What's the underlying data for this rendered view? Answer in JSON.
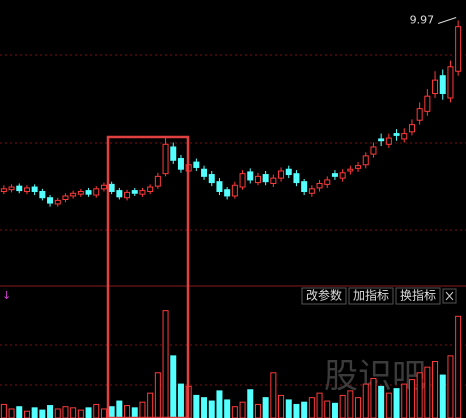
{
  "chart_data": {
    "type": "candlestick",
    "open": [
      8.05,
      8.07,
      8.11,
      8.05,
      8.1,
      8.05,
      7.98,
      7.91,
      7.96,
      8.0,
      8.02,
      8.06,
      8.01,
      8.08,
      8.13,
      8.06,
      7.98,
      8.06,
      8.02,
      8.05,
      8.11,
      8.25,
      8.55,
      8.42,
      8.28,
      8.38,
      8.3,
      8.24,
      8.16,
      8.07,
      8.0,
      8.1,
      8.27,
      8.15,
      8.24,
      8.14,
      8.2,
      8.3,
      8.25,
      8.16,
      8.03,
      8.09,
      8.13,
      8.25,
      8.2,
      8.28,
      8.31,
      8.35,
      8.47,
      8.64,
      8.58,
      8.7,
      8.64,
      8.72,
      8.85,
      8.95,
      9.15,
      9.35,
      9.1,
      9.4
    ],
    "high": [
      8.12,
      8.13,
      8.14,
      8.12,
      8.13,
      8.08,
      8.01,
      7.98,
      8.03,
      8.06,
      8.08,
      8.09,
      8.11,
      8.15,
      8.16,
      8.09,
      8.07,
      8.09,
      8.09,
      8.13,
      8.26,
      8.66,
      8.6,
      8.46,
      8.4,
      8.42,
      8.34,
      8.28,
      8.2,
      8.1,
      8.16,
      8.29,
      8.31,
      8.26,
      8.28,
      8.24,
      8.32,
      8.34,
      8.29,
      8.19,
      8.12,
      8.18,
      8.22,
      8.29,
      8.3,
      8.34,
      8.38,
      8.49,
      8.6,
      8.7,
      8.7,
      8.75,
      8.76,
      8.86,
      9.05,
      9.2,
      9.4,
      9.42,
      9.52,
      9.97
    ],
    "low": [
      8.02,
      8.04,
      8.03,
      8.02,
      8.01,
      7.95,
      7.88,
      7.88,
      7.93,
      7.97,
      7.99,
      7.99,
      7.98,
      8.05,
      8.02,
      7.96,
      7.95,
      8.0,
      7.99,
      8.02,
      8.08,
      8.22,
      8.36,
      8.26,
      8.24,
      8.28,
      8.18,
      8.11,
      8.01,
      7.96,
      7.97,
      8.07,
      8.14,
      8.12,
      8.12,
      8.1,
      8.16,
      8.2,
      8.11,
      8.01,
      7.99,
      8.05,
      8.09,
      8.18,
      8.16,
      8.24,
      8.27,
      8.31,
      8.43,
      8.56,
      8.54,
      8.62,
      8.6,
      8.68,
      8.8,
      8.9,
      9.1,
      9.08,
      9.05,
      9.35
    ],
    "close": [
      8.08,
      8.1,
      8.06,
      8.09,
      8.05,
      7.98,
      7.92,
      7.95,
      8.0,
      8.03,
      8.05,
      8.02,
      8.08,
      8.12,
      8.05,
      7.99,
      8.04,
      8.03,
      8.06,
      8.1,
      8.22,
      8.58,
      8.4,
      8.3,
      8.35,
      8.32,
      8.22,
      8.15,
      8.05,
      8.0,
      8.12,
      8.25,
      8.18,
      8.22,
      8.16,
      8.2,
      8.28,
      8.24,
      8.15,
      8.05,
      8.08,
      8.14,
      8.18,
      8.22,
      8.26,
      8.3,
      8.34,
      8.45,
      8.55,
      8.62,
      8.65,
      8.68,
      8.7,
      8.8,
      8.98,
      9.12,
      9.3,
      9.15,
      9.45,
      9.9
    ],
    "volume": [
      12,
      8,
      10,
      6,
      9,
      7,
      11,
      8,
      10,
      9,
      7,
      9,
      12,
      8,
      10,
      15,
      11,
      9,
      14,
      22,
      40,
      95,
      55,
      30,
      28,
      20,
      18,
      15,
      24,
      16,
      10,
      14,
      25,
      12,
      18,
      40,
      20,
      16,
      12,
      14,
      18,
      22,
      15,
      13,
      20,
      24,
      18,
      30,
      35,
      28,
      22,
      26,
      30,
      34,
      40,
      45,
      50,
      38,
      55,
      90
    ],
    "ylim": [
      7.0,
      10.2
    ],
    "volume_ylim": [
      0,
      100
    ],
    "up_color": "#ff3b3b",
    "down_color": "#54ffff",
    "buttons": [
      "改参数",
      "加指标",
      "换指标"
    ],
    "watermark": "股识吧"
  }
}
